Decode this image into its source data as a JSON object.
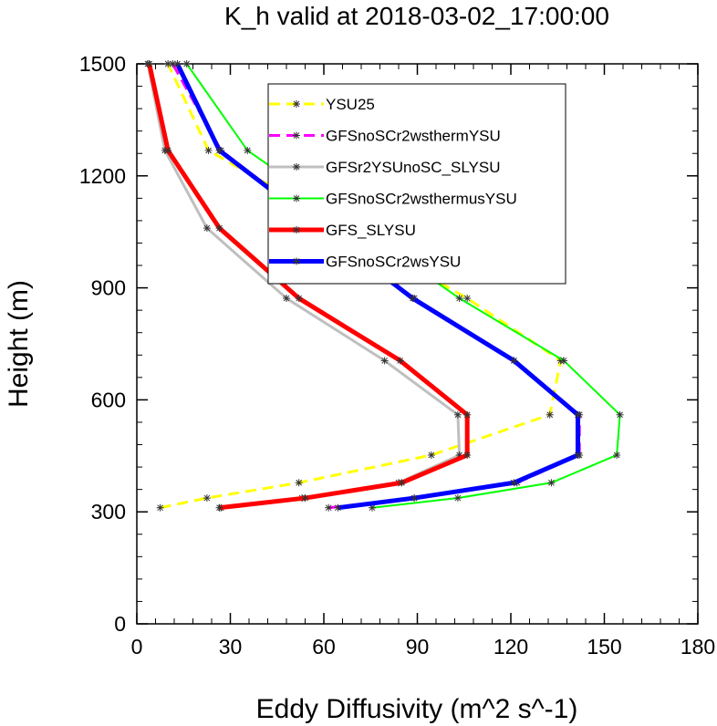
{
  "chart_data": {
    "type": "line",
    "title": "K_h valid at 2018-03-02_17:00:00",
    "xlabel": "Eddy Diffusivity (m^2 s^-1)",
    "ylabel": "Height (m)",
    "xlim": [
      0,
      180
    ],
    "ylim": [
      0,
      1500
    ],
    "xticks": [
      0,
      30,
      60,
      90,
      120,
      150,
      180
    ],
    "yticks": [
      0,
      300,
      600,
      900,
      1200,
      1500
    ],
    "xtick_labels": [
      "0",
      "30",
      "60",
      "90",
      "120",
      "150",
      "180"
    ],
    "ytick_labels": [
      "0",
      "300",
      "600",
      "900",
      "1200",
      "1500"
    ],
    "minor_x_step": 6,
    "minor_y_step": 60,
    "grid": false,
    "legend_position": "top-center",
    "series": [
      {
        "name": "YSU25",
        "color": "#ffff00",
        "dash": true,
        "width": 3,
        "points": [
          [
            7.5,
            311
          ],
          [
            22.5,
            337
          ],
          [
            52,
            378
          ],
          [
            94.5,
            452
          ],
          [
            132.5,
            560
          ],
          [
            136,
            705
          ],
          [
            106,
            872
          ],
          [
            23,
            1268
          ],
          [
            10,
            1500
          ]
        ]
      },
      {
        "name": "GFSnoSCr2wsthermYSU",
        "color": "#ff00ff",
        "dash": true,
        "width": 3,
        "points": [
          [
            61.5,
            311
          ],
          [
            89,
            337
          ],
          [
            122,
            378
          ],
          [
            142,
            452
          ],
          [
            142,
            560
          ],
          [
            121,
            705
          ],
          [
            89,
            872
          ],
          [
            27,
            1268
          ],
          [
            11.5,
            1500
          ]
        ]
      },
      {
        "name": "GFSr2YSUnoSC_SLYSU",
        "color": "#bfbfbf",
        "dash": false,
        "width": 3,
        "points": [
          [
            27,
            311
          ],
          [
            53,
            337
          ],
          [
            84,
            378
          ],
          [
            103.5,
            452
          ],
          [
            103,
            560
          ],
          [
            79.5,
            705
          ],
          [
            48,
            872
          ],
          [
            22.5,
            1060
          ],
          [
            9,
            1268
          ],
          [
            3.5,
            1500
          ]
        ]
      },
      {
        "name": "GFSnoSCr2wsthermusYSU",
        "color": "#00ff00",
        "dash": false,
        "width": 2,
        "points": [
          [
            75.5,
            311
          ],
          [
            103,
            337
          ],
          [
            133,
            378
          ],
          [
            154,
            452
          ],
          [
            155,
            560
          ],
          [
            137,
            705
          ],
          [
            103.5,
            872
          ],
          [
            35.5,
            1268
          ],
          [
            16,
            1500
          ]
        ]
      },
      {
        "name": "GFS_SLYSU",
        "color": "#ff0000",
        "dash": false,
        "width": 5,
        "points": [
          [
            26.5,
            311
          ],
          [
            54,
            337
          ],
          [
            85,
            378
          ],
          [
            106,
            452
          ],
          [
            106,
            560
          ],
          [
            84.5,
            705
          ],
          [
            52,
            872
          ],
          [
            26.5,
            1060
          ],
          [
            10,
            1268
          ],
          [
            4,
            1500
          ]
        ]
      },
      {
        "name": "GFSnoSCr2wsYSU",
        "color": "#0000ff",
        "dash": false,
        "width": 5,
        "points": [
          [
            64.5,
            311
          ],
          [
            89,
            337
          ],
          [
            121,
            378
          ],
          [
            141.5,
            452
          ],
          [
            141.5,
            560
          ],
          [
            121,
            705
          ],
          [
            88.5,
            872
          ],
          [
            26.5,
            1268
          ],
          [
            13,
            1500
          ]
        ]
      }
    ]
  }
}
